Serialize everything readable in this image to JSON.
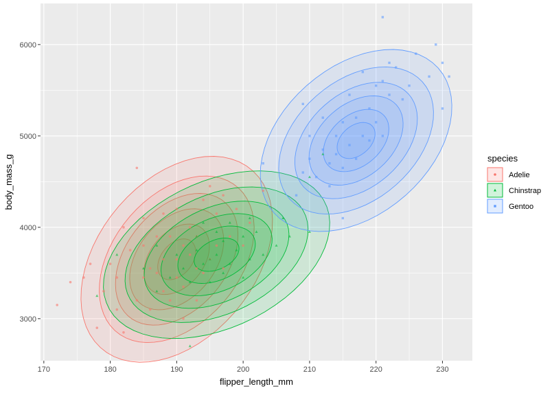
{
  "chart_data": {
    "type": "scatter",
    "xlabel": "flipper_length_mm",
    "ylabel": "body_mass_g",
    "xlim": [
      169.5,
      234.5
    ],
    "ylim": [
      2540,
      6450
    ],
    "xticks": [
      170,
      180,
      190,
      200,
      210,
      220,
      230
    ],
    "yticks": [
      3000,
      4000,
      5000,
      6000
    ],
    "grid": true,
    "legend": {
      "title": "species",
      "placement": "right"
    },
    "series": [
      {
        "name": "Adelie",
        "color": "#F8766D",
        "density_center": [
          190,
          3650
        ],
        "density_spread": [
          5.5,
          430
        ],
        "points": [
          [
            172,
            3150
          ],
          [
            174,
            3400
          ],
          [
            176,
            3450
          ],
          [
            177,
            3600
          ],
          [
            178,
            2900
          ],
          [
            179,
            3300
          ],
          [
            180,
            3600
          ],
          [
            181,
            3100
          ],
          [
            181,
            3450
          ],
          [
            182,
            2850
          ],
          [
            183,
            3750
          ],
          [
            184,
            4650
          ],
          [
            184,
            3200
          ],
          [
            185,
            3800
          ],
          [
            185,
            3450
          ],
          [
            186,
            3100
          ],
          [
            186,
            3550
          ],
          [
            187,
            3500
          ],
          [
            187,
            3900
          ],
          [
            188,
            3300
          ],
          [
            188,
            3650
          ],
          [
            189,
            3200
          ],
          [
            189,
            3900
          ],
          [
            190,
            3450
          ],
          [
            190,
            4200
          ],
          [
            190,
            3650
          ],
          [
            191,
            3800
          ],
          [
            191,
            3350
          ],
          [
            192,
            3700
          ],
          [
            192,
            4000
          ],
          [
            193,
            3550
          ],
          [
            193,
            3900
          ],
          [
            194,
            4300
          ],
          [
            194,
            3500
          ],
          [
            195,
            3650
          ],
          [
            195,
            4450
          ],
          [
            196,
            3800
          ],
          [
            196,
            4150
          ],
          [
            197,
            3550
          ],
          [
            197,
            4350
          ],
          [
            198,
            3900
          ],
          [
            199,
            4200
          ],
          [
            200,
            3800
          ],
          [
            201,
            4050
          ],
          [
            203,
            4400
          ],
          [
            185,
            4100
          ],
          [
            182,
            4000
          ],
          [
            188,
            4150
          ],
          [
            191,
            3000
          ],
          [
            193,
            3200
          ]
        ]
      },
      {
        "name": "Chinstrap",
        "color": "#00BA38",
        "density_center": [
          196,
          3700
        ],
        "density_spread": [
          6.5,
          350
        ],
        "points": [
          [
            178,
            3250
          ],
          [
            181,
            3700
          ],
          [
            185,
            3550
          ],
          [
            187,
            3300
          ],
          [
            187,
            3800
          ],
          [
            189,
            3450
          ],
          [
            190,
            3700
          ],
          [
            191,
            3550
          ],
          [
            192,
            2700
          ],
          [
            192,
            3400
          ],
          [
            193,
            3750
          ],
          [
            193,
            3900
          ],
          [
            194,
            3600
          ],
          [
            195,
            3650
          ],
          [
            195,
            3400
          ],
          [
            196,
            3700
          ],
          [
            196,
            3950
          ],
          [
            197,
            3500
          ],
          [
            197,
            3850
          ],
          [
            198,
            3600
          ],
          [
            198,
            4050
          ],
          [
            199,
            3750
          ],
          [
            200,
            3450
          ],
          [
            200,
            3900
          ],
          [
            201,
            3650
          ],
          [
            201,
            4100
          ],
          [
            202,
            3950
          ],
          [
            203,
            3700
          ],
          [
            205,
            3800
          ],
          [
            206,
            4100
          ],
          [
            207,
            3900
          ],
          [
            210,
            4550
          ],
          [
            212,
            4800
          ],
          [
            210,
            3950
          ],
          [
            194,
            4050
          ]
        ]
      },
      {
        "name": "Gentoo",
        "color": "#619CFF",
        "density_center": [
          217,
          4950
        ],
        "density_spread": [
          5.5,
          380
        ],
        "points": [
          [
            203,
            4700
          ],
          [
            208,
            4350
          ],
          [
            209,
            4600
          ],
          [
            209,
            5350
          ],
          [
            210,
            4750
          ],
          [
            210,
            5000
          ],
          [
            211,
            4550
          ],
          [
            212,
            4850
          ],
          [
            212,
            5200
          ],
          [
            213,
            4700
          ],
          [
            213,
            4450
          ],
          [
            214,
            5000
          ],
          [
            214,
            4800
          ],
          [
            215,
            4650
          ],
          [
            215,
            5150
          ],
          [
            215,
            4100
          ],
          [
            216,
            4900
          ],
          [
            216,
            5450
          ],
          [
            217,
            4750
          ],
          [
            217,
            5200
          ],
          [
            218,
            5000
          ],
          [
            218,
            5700
          ],
          [
            219,
            5300
          ],
          [
            219,
            4950
          ],
          [
            220,
            5550
          ],
          [
            220,
            5150
          ],
          [
            221,
            5600
          ],
          [
            221,
            6300
          ],
          [
            222,
            5450
          ],
          [
            222,
            5800
          ],
          [
            223,
            5750
          ],
          [
            224,
            5400
          ],
          [
            225,
            5550
          ],
          [
            226,
            5900
          ],
          [
            228,
            5650
          ],
          [
            229,
            6000
          ],
          [
            230,
            5800
          ],
          [
            230,
            5300
          ],
          [
            231,
            5650
          ],
          [
            221,
            5000
          ]
        ]
      }
    ]
  }
}
